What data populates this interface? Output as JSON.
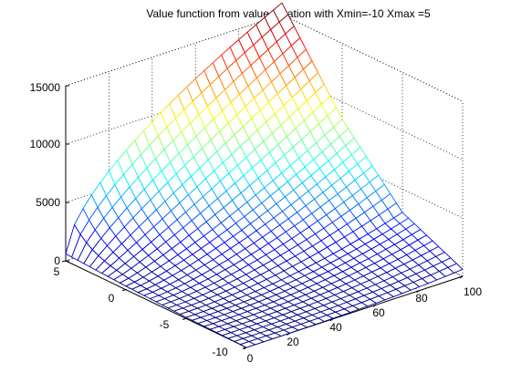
{
  "chart_data": {
    "type": "surface",
    "title": "Value function from value iteration with Xmin=-10 Xmax =5",
    "xlabel": "",
    "ylabel": "",
    "zlabel": "",
    "x_ticks": [
      "0",
      "20",
      "40",
      "60",
      "80",
      "100"
    ],
    "y_ticks": [
      "-10",
      "-5",
      "0",
      "5"
    ],
    "z_ticks": [
      "0",
      "5000",
      "10000",
      "15000"
    ],
    "xlim": [
      0,
      100
    ],
    "ylim": [
      -10,
      5
    ],
    "zlim": [
      0,
      15000
    ],
    "grid": true,
    "colormap": "jet",
    "x_grid_step": 4,
    "y_grid_step": 0.5,
    "surface_shape": "grows with x; strongly at y=5, weakly at y=-10",
    "z_at_x_100": {
      "y_5": 16000,
      "y_0": 8500,
      "y_-5": 3000,
      "y_-10": 600
    },
    "z_near_x_0": {
      "y_5": 600,
      "y_0": 300,
      "y_-5": 100,
      "y_-10": 0
    }
  }
}
